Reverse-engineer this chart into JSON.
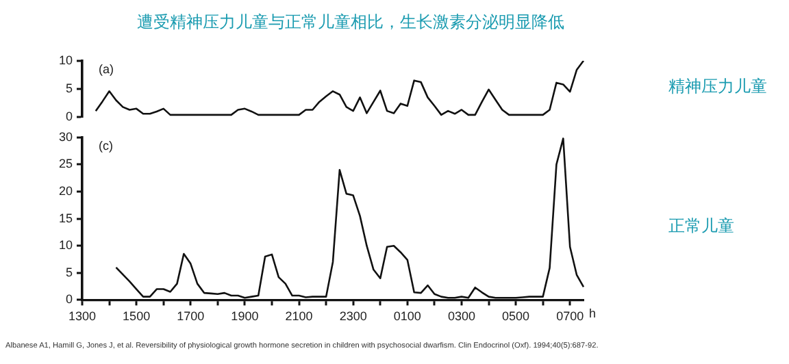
{
  "chart_data": [
    {
      "type": "line",
      "title": "遭受精神压力儿童与正常儿童相比，生长激素分泌明显降低",
      "annotations": [
        "(a)"
      ],
      "categories": [
        "1300",
        null,
        null,
        null,
        null,
        null,
        null,
        null,
        "1500",
        null,
        null,
        null,
        null,
        null,
        null,
        null,
        "1700",
        null,
        null,
        null,
        null,
        null,
        null,
        null,
        "1900",
        null,
        null,
        null,
        null,
        null,
        null,
        null,
        "2100",
        null,
        null,
        null,
        null,
        null,
        null,
        null,
        "2300",
        null,
        null,
        null,
        null,
        null,
        null,
        null,
        "0100",
        null,
        null,
        null,
        null,
        null,
        null,
        null,
        "0300",
        null,
        null,
        null,
        null,
        null,
        null,
        null,
        "0500",
        null,
        null,
        null,
        null,
        null,
        null,
        null,
        "0700",
        null,
        null
      ],
      "ylim": [
        0,
        10
      ],
      "yticks": [
        0,
        5,
        10
      ],
      "tick_labels": "y",
      "grid": false,
      "legend": false,
      "marker": "none",
      "line_style": "solid",
      "series": [
        {
          "name": "精神压力儿童",
          "color": "#111111",
          "values": [
            null,
            null,
            1.1,
            2.8,
            4.6,
            3.0,
            1.8,
            1.3,
            1.5,
            0.6,
            0.6,
            1.0,
            1.5,
            0.4,
            0.4,
            0.4,
            0.4,
            0.4,
            0.4,
            0.4,
            0.4,
            0.4,
            0.4,
            1.3,
            1.5,
            1.0,
            0.4,
            0.4,
            0.4,
            0.4,
            0.4,
            0.4,
            0.4,
            1.3,
            1.3,
            2.7,
            3.7,
            4.6,
            4.0,
            1.8,
            1.1,
            3.5,
            0.7,
            2.7,
            4.7,
            1.1,
            0.7,
            2.4,
            2.0,
            6.5,
            6.2,
            3.5,
            2.0,
            0.4,
            1.1,
            0.6,
            1.3,
            0.4,
            0.4,
            2.7,
            4.9,
            3.1,
            1.3,
            0.4,
            0.4,
            0.4,
            0.4,
            0.4,
            0.4,
            1.3,
            6.1,
            5.8,
            4.5,
            8.4,
            10
          ]
        }
      ]
    },
    {
      "type": "line",
      "annotations": [
        "(c)",
        "Albanese A1, Hamill G, Jones J, et al. Reversibility of physiological growth hormone secretion in children with psychosocial dwarfism. Clin Endocrinol (Oxf). 1994;40(5):687-92."
      ],
      "xlabel": "h",
      "categories": [
        "1300",
        null,
        null,
        null,
        null,
        null,
        null,
        null,
        "1500",
        null,
        null,
        null,
        null,
        null,
        null,
        null,
        "1700",
        null,
        null,
        null,
        null,
        null,
        null,
        null,
        "1900",
        null,
        null,
        null,
        null,
        null,
        null,
        null,
        "2100",
        null,
        null,
        null,
        null,
        null,
        null,
        null,
        "2300",
        null,
        null,
        null,
        null,
        null,
        null,
        null,
        "0100",
        null,
        null,
        null,
        null,
        null,
        null,
        null,
        "0300",
        null,
        null,
        null,
        null,
        null,
        null,
        null,
        "0500",
        null,
        null,
        null,
        null,
        null,
        null,
        null,
        "0700",
        null,
        null
      ],
      "ylim": [
        0,
        30
      ],
      "yticks": [
        0,
        5,
        10,
        15,
        20,
        25,
        30
      ],
      "grid": false,
      "legend": false,
      "marker": "none",
      "line_style": "solid",
      "series": [
        {
          "name": "正常儿童",
          "color": "#111111",
          "values": [
            null,
            null,
            null,
            null,
            null,
            6.0,
            4.7,
            3.4,
            2.0,
            0.6,
            0.6,
            2.0,
            2.0,
            1.5,
            3.0,
            8.5,
            6.7,
            3.0,
            1.3,
            1.2,
            1.1,
            1.3,
            0.8,
            0.8,
            0.4,
            0.6,
            0.8,
            8.0,
            8.4,
            4.2,
            3.0,
            0.8,
            0.8,
            0.5,
            0.6,
            0.6,
            0.6,
            7.0,
            24,
            19.6,
            19.3,
            15.5,
            10,
            5.6,
            4.0,
            9.8,
            10,
            8.8,
            7.4,
            1.4,
            1.3,
            2.7,
            1.1,
            0.6,
            0.4,
            0.4,
            0.6,
            0.4,
            2.3,
            1.4,
            0.6,
            0.4,
            0.4,
            0.4,
            0.4,
            0.5,
            0.6,
            0.6,
            0.6,
            5.9,
            25,
            29.8,
            9.8,
            4.6,
            2.4
          ]
        }
      ]
    }
  ]
}
